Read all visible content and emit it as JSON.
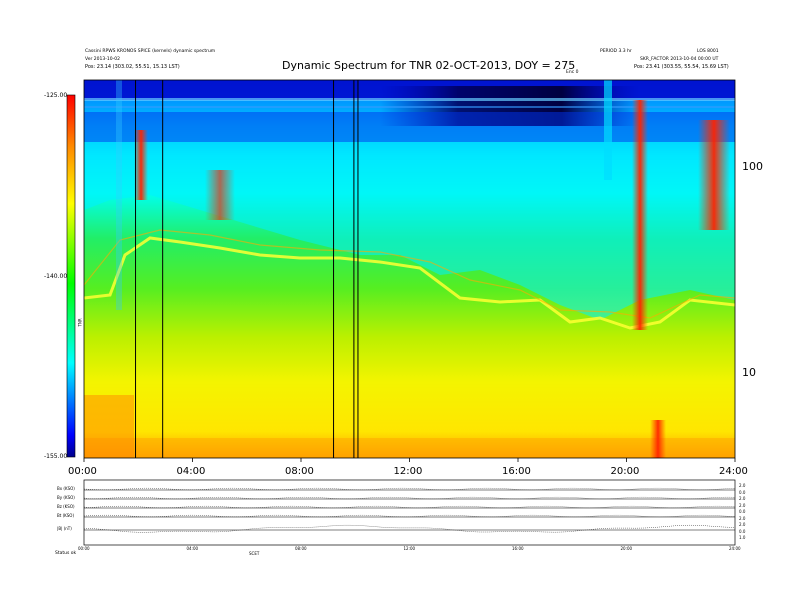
{
  "header": {
    "left_line1": "Cassini RPWS KRONOS SPICE (kernels) dynamic spectrum",
    "left_line2": "Ver 2013-10-02",
    "left_line3": "Pos:  23.14 (303.02, 55.51, 15.13 LST)",
    "right_line0": "PERIOD 3.3 hr",
    "right_line0b": "LOS 8001",
    "right_line1": "SKR_FACTOR 2013-10-04 00:00 UT",
    "right_line2": "Pos:  23.41 (303.55, 55.54, 15.69 LST)",
    "event_label": "Enc 0"
  },
  "chart_data": {
    "type": "heatmap",
    "title": "Dynamic Spectrum for TNR 02-OCT-2013, DOY = 275",
    "x": {
      "ticks": [
        "00:00",
        "04:00",
        "08:00",
        "12:00",
        "16:00",
        "20:00",
        "24:00"
      ],
      "range_hours": [
        0,
        24
      ]
    },
    "y_right": {
      "ticks": [
        "100",
        "10"
      ],
      "scale": "log"
    },
    "colorbar": {
      "ticks": [
        "-125.00",
        "-140.00",
        "-155.00"
      ],
      "range": [
        -155,
        -125
      ],
      "label": "TNR",
      "colors": [
        "#00008b",
        "#0000ff",
        "#00ffff",
        "#00ff00",
        "#ffff00",
        "#ff8800",
        "#ff0000"
      ]
    },
    "vertical_markers_hours": [
      1.9,
      2.9,
      9.2,
      9.95,
      10.1
    ],
    "lower_panel": {
      "row_labels": [
        "Bx (KSO)",
        "By (KSO)",
        "Bz (KSO)",
        "Bt (KSO)",
        "|B| (nT)"
      ],
      "right_labels": [
        "2.0",
        "0.0",
        "2.0",
        "2.0",
        "0.0",
        "2.0",
        "2.0",
        "0.0",
        "1.0"
      ],
      "x_ticks": [
        "00:00",
        "04:00",
        "08:00",
        "12:00",
        "16:00",
        "20:00",
        "24:00"
      ],
      "footer_left": "Status  ok",
      "footer_tag": "SCET"
    }
  }
}
